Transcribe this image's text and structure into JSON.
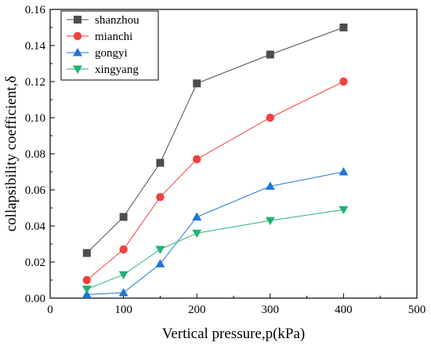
{
  "chart_data": {
    "type": "line",
    "title": "",
    "xlabel": "Vertical pressure,p(kPa)",
    "ylabel": "collapsibility coefficient,δ",
    "xlim": [
      0,
      500
    ],
    "ylim": [
      0,
      0.16
    ],
    "xticks": [
      0,
      100,
      200,
      300,
      400,
      500
    ],
    "yticks": [
      0.0,
      0.02,
      0.04,
      0.06,
      0.08,
      0.1,
      0.12,
      0.14,
      0.16
    ],
    "xtick_labels": [
      "0",
      "100",
      "200",
      "300",
      "400",
      "500"
    ],
    "ytick_labels": [
      "0.00",
      "0.02",
      "0.04",
      "0.06",
      "0.08",
      "0.10",
      "0.12",
      "0.14",
      "0.16"
    ],
    "grid": false,
    "legend_position": "top-left",
    "x": [
      50,
      100,
      150,
      200,
      300,
      400
    ],
    "series": [
      {
        "name": "shanzhou",
        "values": [
          0.025,
          0.045,
          0.075,
          0.119,
          0.135,
          0.15
        ],
        "color": "#4d4d4d",
        "marker": "square"
      },
      {
        "name": "mianchi",
        "values": [
          0.01,
          0.027,
          0.056,
          0.077,
          0.1,
          0.12
        ],
        "color": "#f0413f",
        "marker": "circle"
      },
      {
        "name": "gongyi",
        "values": [
          0.002,
          0.003,
          0.019,
          0.045,
          0.062,
          0.07
        ],
        "color": "#1f75d9",
        "marker": "triangle-up"
      },
      {
        "name": "xingyang",
        "values": [
          0.005,
          0.013,
          0.027,
          0.036,
          0.043,
          0.049
        ],
        "color": "#1fb574",
        "marker": "triangle-down"
      }
    ]
  }
}
